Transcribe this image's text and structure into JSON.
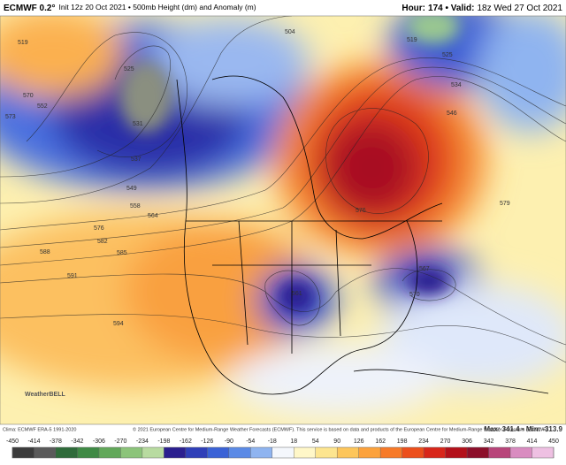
{
  "header": {
    "model": "ECMWF 0.2°",
    "init": "Init 12z 20 Oct 2021",
    "field": "500mb Height (dm) and Anomaly (m)",
    "hour_label": "Hour:",
    "hour": "174",
    "valid_label": "Valid:",
    "valid": "18z Wed 27 Oct 2021"
  },
  "contour_labels": [
    "519",
    "525",
    "531",
    "537",
    "549",
    "558",
    "564",
    "576",
    "582",
    "585",
    "588",
    "591",
    "594",
    "561",
    "567",
    "570",
    "546",
    "552",
    "570",
    "573",
    "579",
    "504",
    "576",
    "519",
    "525",
    "534"
  ],
  "logo": "WeatherBELL",
  "footer": {
    "clima": "Clima: ECMWF ERA-5 1991-2020",
    "copyright": "© 2021 European Centre for Medium-Range Weather Forecasts (ECMWF). This service is based on data and products of the European Centre for Medium-Range Weather Forecasts (ECMWF).",
    "max_label": "Max:",
    "max": "341.4",
    "min_label": "Min:",
    "min": "-313.9"
  },
  "colorbar": {
    "ticks": [
      -450,
      -414,
      -378,
      -342,
      -306,
      -270,
      -234,
      -198,
      -162,
      -126,
      -90,
      -54,
      -18,
      18,
      54,
      90,
      126,
      162,
      198,
      234,
      270,
      306,
      342,
      378,
      414,
      450
    ],
    "colors": [
      "#3b3b3b",
      "#5a5a5a",
      "#2f6b3a",
      "#3f8a45",
      "#62a85a",
      "#8cc47a",
      "#b8dba0",
      "#2b1f8f",
      "#2f3fb8",
      "#3a62d6",
      "#5b8ae6",
      "#8fb4f0",
      "#f4f7fc",
      "#fff7c8",
      "#fde58f",
      "#fdc65b",
      "#fca23c",
      "#f77a28",
      "#ec4f1c",
      "#d8261a",
      "#b3101a",
      "#8c0f2a",
      "#b8457a",
      "#d98cc0",
      "#eec0e2"
    ]
  }
}
